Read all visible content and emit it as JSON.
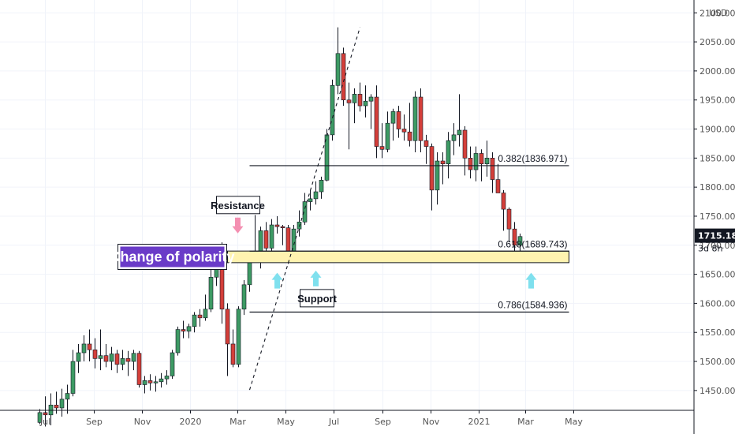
{
  "chart_data": {
    "type": "candlestick",
    "currency_label": "USD",
    "x_tick_labels": [
      "Jul",
      "Sep",
      "Nov",
      "2020",
      "Mar",
      "May",
      "Jul",
      "Sep",
      "Nov",
      "2021",
      "Mar",
      "May"
    ],
    "y_tick_labels": [
      "2100.000",
      "2050.000",
      "2000.000",
      "1950.000",
      "1900.000",
      "1850.000",
      "1800.000",
      "1750.000",
      "1700.000",
      "1650.000",
      "1600.000",
      "1550.000",
      "1500.000",
      "1450.000"
    ],
    "y_ticks": [
      2100,
      2050,
      2000,
      1950,
      1900,
      1850,
      1800,
      1750,
      1700,
      1650,
      1600,
      1550,
      1500,
      1450
    ],
    "ylim": [
      1405,
      2118
    ],
    "period": "weekly",
    "first_candle_date": "2019-06-24",
    "candles": [
      [
        1395,
        1418,
        1392,
        1412
      ],
      [
        1412,
        1440,
        1388,
        1408
      ],
      [
        1408,
        1445,
        1390,
        1425
      ],
      [
        1425,
        1448,
        1410,
        1420
      ],
      [
        1420,
        1453,
        1405,
        1435
      ],
      [
        1435,
        1460,
        1410,
        1445
      ],
      [
        1445,
        1520,
        1440,
        1500
      ],
      [
        1500,
        1530,
        1480,
        1515
      ],
      [
        1515,
        1545,
        1500,
        1530
      ],
      [
        1530,
        1555,
        1500,
        1520
      ],
      [
        1520,
        1540,
        1488,
        1505
      ],
      [
        1505,
        1555,
        1485,
        1510
      ],
      [
        1510,
        1530,
        1490,
        1500
      ],
      [
        1500,
        1525,
        1485,
        1513
      ],
      [
        1513,
        1520,
        1480,
        1495
      ],
      [
        1495,
        1520,
        1485,
        1505
      ],
      [
        1505,
        1518,
        1475,
        1500
      ],
      [
        1500,
        1520,
        1485,
        1514
      ],
      [
        1514,
        1518,
        1455,
        1460
      ],
      [
        1460,
        1475,
        1445,
        1467
      ],
      [
        1467,
        1478,
        1450,
        1463
      ],
      [
        1463,
        1475,
        1448,
        1465
      ],
      [
        1465,
        1480,
        1455,
        1470
      ],
      [
        1470,
        1485,
        1460,
        1475
      ],
      [
        1475,
        1520,
        1470,
        1515
      ],
      [
        1515,
        1560,
        1510,
        1555
      ],
      [
        1555,
        1570,
        1540,
        1552
      ],
      [
        1552,
        1565,
        1540,
        1560
      ],
      [
        1560,
        1585,
        1550,
        1580
      ],
      [
        1580,
        1590,
        1560,
        1575
      ],
      [
        1575,
        1615,
        1570,
        1590
      ],
      [
        1590,
        1660,
        1585,
        1645
      ],
      [
        1645,
        1690,
        1630,
        1682
      ],
      [
        1682,
        1705,
        1565,
        1590
      ],
      [
        1590,
        1600,
        1475,
        1530
      ],
      [
        1530,
        1555,
        1490,
        1495
      ],
      [
        1495,
        1595,
        1490,
        1590
      ],
      [
        1590,
        1640,
        1580,
        1632
      ],
      [
        1632,
        1690,
        1620,
        1680
      ],
      [
        1680,
        1752,
        1670,
        1690
      ],
      [
        1690,
        1732,
        1660,
        1725
      ],
      [
        1725,
        1740,
        1670,
        1695
      ],
      [
        1695,
        1745,
        1690,
        1735
      ],
      [
        1735,
        1750,
        1720,
        1732
      ],
      [
        1732,
        1735,
        1700,
        1730
      ],
      [
        1730,
        1735,
        1668,
        1690
      ],
      [
        1690,
        1735,
        1685,
        1728
      ],
      [
        1728,
        1760,
        1715,
        1740
      ],
      [
        1740,
        1790,
        1735,
        1775
      ],
      [
        1775,
        1795,
        1760,
        1780
      ],
      [
        1780,
        1810,
        1770,
        1792
      ],
      [
        1792,
        1818,
        1780,
        1812
      ],
      [
        1812,
        1900,
        1810,
        1890
      ],
      [
        1890,
        1985,
        1880,
        1975
      ],
      [
        1975,
        2075,
        1960,
        2030
      ],
      [
        2030,
        2040,
        1940,
        1950
      ],
      [
        1950,
        1980,
        1865,
        1945
      ],
      [
        1945,
        1970,
        1910,
        1960
      ],
      [
        1960,
        1980,
        1930,
        1940
      ],
      [
        1940,
        1975,
        1920,
        1948
      ],
      [
        1948,
        1960,
        1900,
        1955
      ],
      [
        1955,
        1975,
        1850,
        1870
      ],
      [
        1870,
        1910,
        1850,
        1865
      ],
      [
        1865,
        1930,
        1860,
        1910
      ],
      [
        1910,
        1935,
        1880,
        1930
      ],
      [
        1930,
        1940,
        1885,
        1900
      ],
      [
        1900,
        1925,
        1880,
        1895
      ],
      [
        1895,
        1945,
        1870,
        1880
      ],
      [
        1880,
        1965,
        1860,
        1955
      ],
      [
        1955,
        1970,
        1860,
        1880
      ],
      [
        1880,
        1890,
        1840,
        1870
      ],
      [
        1870,
        1875,
        1760,
        1795
      ],
      [
        1795,
        1860,
        1770,
        1845
      ],
      [
        1845,
        1860,
        1805,
        1840
      ],
      [
        1840,
        1895,
        1815,
        1880
      ],
      [
        1880,
        1910,
        1855,
        1890
      ],
      [
        1890,
        1960,
        1870,
        1898
      ],
      [
        1898,
        1905,
        1820,
        1850
      ],
      [
        1850,
        1870,
        1815,
        1830
      ],
      [
        1830,
        1870,
        1810,
        1858
      ],
      [
        1858,
        1865,
        1810,
        1840
      ],
      [
        1840,
        1880,
        1818,
        1850
      ],
      [
        1850,
        1860,
        1790,
        1813
      ],
      [
        1813,
        1840,
        1790,
        1790
      ],
      [
        1790,
        1795,
        1725,
        1762
      ],
      [
        1762,
        1765,
        1705,
        1728
      ],
      [
        1728,
        1740,
        1675,
        1700
      ],
      [
        1700,
        1720,
        1685,
        1715
      ]
    ],
    "annotations": {
      "resistance": "Resistance",
      "support": "Support",
      "change_of_polarity": "Change of polarity",
      "fib_levels": [
        {
          "label": "0.382(1836.971)",
          "price": 1836.971
        },
        {
          "label": "0.618(1689.743)",
          "price": 1689.743
        },
        {
          "label": "0.786(1584.936)",
          "price": 1584.936
        }
      ],
      "polarity_zone": [
        1670,
        1690
      ],
      "trend_line": {
        "from": {
          "date": "2020-03-16",
          "price": 1451
        },
        "to": {
          "date": "2020-08-03",
          "price": 2075
        }
      }
    },
    "last_price": "1715.181",
    "countdown": "3d 8h",
    "colors": {
      "up": "#3d9a64",
      "down": "#d43f3a",
      "zone_fill": "#fff3b0",
      "polarity_bg": "#6a3bc8",
      "resistance_arrow": "#f48fb1",
      "support_arrow": "#7fe0ee",
      "price_tag": "#131722"
    }
  }
}
